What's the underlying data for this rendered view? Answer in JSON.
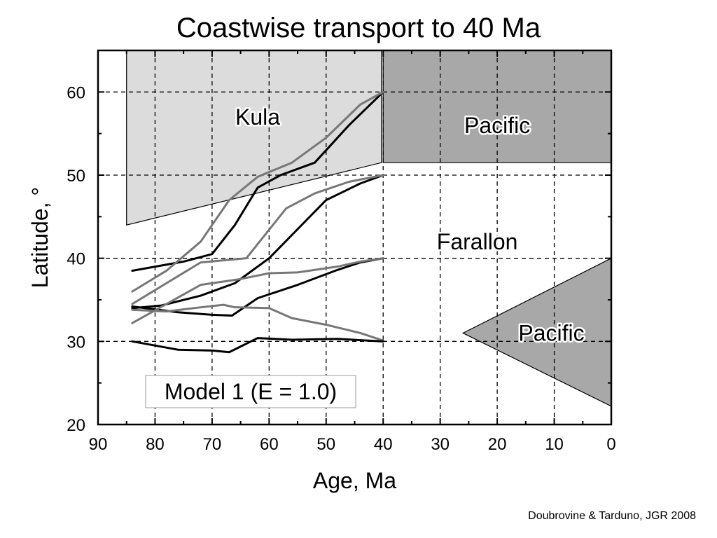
{
  "title": "Coastwise transport to 40 Ma",
  "credit": "Doubrovine & Tarduno, JGR 2008",
  "chart_data": {
    "type": "line",
    "xlabel": "Age, Ma",
    "ylabel": "Latitude, °",
    "xlim": [
      90,
      0
    ],
    "ylim": [
      20,
      65
    ],
    "x_ticks": [
      90,
      80,
      70,
      60,
      50,
      40,
      30,
      20,
      10,
      0
    ],
    "y_ticks": [
      20,
      30,
      40,
      50,
      60
    ],
    "grid": true,
    "grid_style": "dashed",
    "annotation": "Model 1 (E = 1.0)",
    "regions": [
      {
        "label": "Kula",
        "color": "#dcdcdc",
        "polygon": [
          [
            85,
            65
          ],
          [
            40.3,
            65
          ],
          [
            40.3,
            51.5
          ],
          [
            85,
            44
          ]
        ],
        "label_pos": [
          62,
          57
        ]
      },
      {
        "label": "Pacific",
        "color": "#a8a8a8",
        "polygon": [
          [
            40,
            65
          ],
          [
            0,
            65
          ],
          [
            0,
            51.5
          ],
          [
            40,
            51.5
          ]
        ],
        "label_pos": [
          20,
          56
        ]
      },
      {
        "label": "Farallon",
        "color": "#ffffff",
        "polygon": [],
        "label_pos": [
          23.5,
          42
        ]
      },
      {
        "label": "Pacific",
        "color": "#a8a8a8",
        "polygon": [
          [
            0,
            40
          ],
          [
            26,
            31
          ],
          [
            0,
            22.2
          ]
        ],
        "label_pos": [
          10.5,
          31
        ]
      }
    ],
    "series": [
      {
        "color": "#000000",
        "points": [
          [
            84,
            38.5
          ],
          [
            75,
            39.6
          ],
          [
            70,
            40.5
          ],
          [
            66,
            44
          ],
          [
            62,
            48.5
          ],
          [
            58,
            50
          ],
          [
            52,
            51.5
          ],
          [
            46,
            56
          ],
          [
            40,
            60
          ]
        ]
      },
      {
        "color": "#777777",
        "points": [
          [
            84,
            36
          ],
          [
            78,
            38.5
          ],
          [
            72,
            42
          ],
          [
            67,
            47
          ],
          [
            62,
            49.8
          ],
          [
            56,
            51.5
          ],
          [
            50,
            54.5
          ],
          [
            44,
            58.5
          ],
          [
            40,
            60
          ]
        ]
      },
      {
        "color": "#000000",
        "points": [
          [
            84,
            34
          ],
          [
            79,
            34.3
          ],
          [
            72,
            35.5
          ],
          [
            66,
            37
          ],
          [
            60,
            40
          ],
          [
            55,
            43.5
          ],
          [
            50,
            47
          ],
          [
            44,
            49
          ],
          [
            40,
            50
          ]
        ]
      },
      {
        "color": "#777777",
        "points": [
          [
            84,
            34.5
          ],
          [
            78,
            37
          ],
          [
            72,
            39.5
          ],
          [
            64,
            40
          ],
          [
            57,
            46
          ],
          [
            52,
            47.8
          ],
          [
            46,
            49.2
          ],
          [
            40,
            50
          ]
        ]
      },
      {
        "color": "#000000",
        "points": [
          [
            84,
            34.2
          ],
          [
            76,
            33.5
          ],
          [
            70,
            33.2
          ],
          [
            66.5,
            33.1
          ],
          [
            62,
            35.2
          ],
          [
            55,
            36.8
          ],
          [
            48,
            38.6
          ],
          [
            44,
            39.5
          ],
          [
            40,
            40
          ]
        ]
      },
      {
        "color": "#777777",
        "points": [
          [
            84,
            32.2
          ],
          [
            78,
            34.5
          ],
          [
            72,
            36.8
          ],
          [
            65,
            37.5
          ],
          [
            60,
            38.2
          ],
          [
            55,
            38.3
          ],
          [
            48,
            39
          ],
          [
            44,
            39.6
          ],
          [
            40,
            40
          ]
        ]
      },
      {
        "color": "#777777",
        "points": [
          [
            84,
            33.8
          ],
          [
            78,
            33.6
          ],
          [
            72,
            34.1
          ],
          [
            68,
            34.4
          ],
          [
            66,
            34.1
          ],
          [
            60,
            34
          ],
          [
            56,
            32.8
          ],
          [
            50,
            32
          ],
          [
            44,
            31
          ],
          [
            40,
            30.1
          ]
        ]
      },
      {
        "color": "#000000",
        "points": [
          [
            84,
            30
          ],
          [
            76,
            29
          ],
          [
            70,
            28.9
          ],
          [
            67,
            28.7
          ],
          [
            62,
            30.4
          ],
          [
            56,
            30.2
          ],
          [
            48,
            30.3
          ],
          [
            40,
            30
          ]
        ]
      }
    ]
  }
}
